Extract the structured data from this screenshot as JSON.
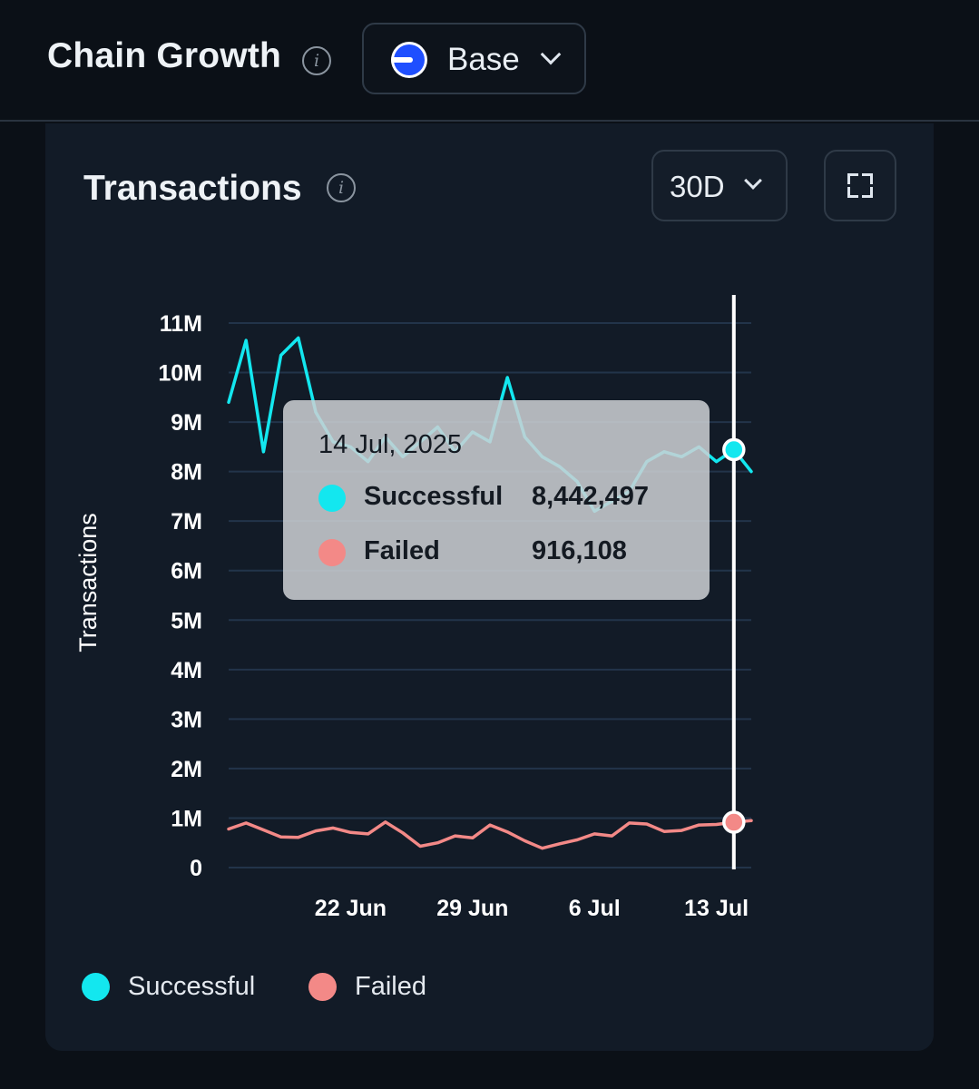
{
  "header": {
    "title": "Chain Growth",
    "chain_selector": {
      "label": "Base"
    }
  },
  "card": {
    "title": "Transactions",
    "range_selector": {
      "label": "30D"
    }
  },
  "colors": {
    "successful": "#13e7ef",
    "failed": "#f38987",
    "grid": "#22344a"
  },
  "tooltip": {
    "date": "14 Jul, 2025",
    "rows": [
      {
        "name": "Successful",
        "value": "8,442,497",
        "color": "#13e7ef"
      },
      {
        "name": "Failed",
        "value": "916,108",
        "color": "#f38987"
      }
    ]
  },
  "chart_data": {
    "type": "line",
    "ylabel": "Transactions",
    "ylim": [
      0,
      11000000
    ],
    "y_ticks": [
      {
        "value": 0,
        "label": "0"
      },
      {
        "value": 1000000,
        "label": "1M"
      },
      {
        "value": 2000000,
        "label": "2M"
      },
      {
        "value": 3000000,
        "label": "3M"
      },
      {
        "value": 4000000,
        "label": "4M"
      },
      {
        "value": 5000000,
        "label": "5M"
      },
      {
        "value": 6000000,
        "label": "6M"
      },
      {
        "value": 7000000,
        "label": "7M"
      },
      {
        "value": 8000000,
        "label": "8M"
      },
      {
        "value": 9000000,
        "label": "9M"
      },
      {
        "value": 10000000,
        "label": "10M"
      },
      {
        "value": 11000000,
        "label": "11M"
      }
    ],
    "x_ticks": [
      {
        "x": "2025-06-22",
        "label": "22 Jun"
      },
      {
        "x": "2025-06-29",
        "label": "29 Jun"
      },
      {
        "x": "2025-07-06",
        "label": "6 Jul"
      },
      {
        "x": "2025-07-13",
        "label": "13 Jul"
      }
    ],
    "x": [
      "2025-06-15",
      "2025-06-16",
      "2025-06-17",
      "2025-06-18",
      "2025-06-19",
      "2025-06-20",
      "2025-06-21",
      "2025-06-22",
      "2025-06-23",
      "2025-06-24",
      "2025-06-25",
      "2025-06-26",
      "2025-06-27",
      "2025-06-28",
      "2025-06-29",
      "2025-06-30",
      "2025-07-01",
      "2025-07-02",
      "2025-07-03",
      "2025-07-04",
      "2025-07-05",
      "2025-07-06",
      "2025-07-07",
      "2025-07-08",
      "2025-07-09",
      "2025-07-10",
      "2025-07-11",
      "2025-07-12",
      "2025-07-13",
      "2025-07-14",
      "2025-07-15"
    ],
    "series": [
      {
        "name": "Successful",
        "color": "#13e7ef",
        "values": [
          9400000,
          10650000,
          8400000,
          10350000,
          10700000,
          9200000,
          8600000,
          8500000,
          8200000,
          8700000,
          8300000,
          8600000,
          8900000,
          8400000,
          8800000,
          8600000,
          9900000,
          8700000,
          8300000,
          8100000,
          7800000,
          7200000,
          7400000,
          7600000,
          8200000,
          8400000,
          8300000,
          8500000,
          8200000,
          8442497,
          8000000
        ]
      },
      {
        "name": "Failed",
        "color": "#f38987",
        "values": [
          780000,
          900000,
          760000,
          620000,
          610000,
          740000,
          800000,
          710000,
          680000,
          920000,
          700000,
          430000,
          500000,
          640000,
          600000,
          860000,
          720000,
          540000,
          390000,
          480000,
          560000,
          680000,
          640000,
          900000,
          880000,
          730000,
          750000,
          860000,
          870000,
          916108,
          950000
        ]
      }
    ],
    "highlight": {
      "x": "2025-07-14"
    },
    "legend": {
      "position": "bottom-left"
    }
  }
}
